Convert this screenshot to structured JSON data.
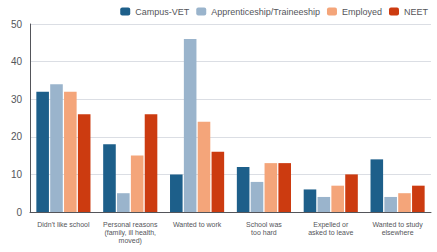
{
  "chart_data": {
    "type": "bar",
    "categories": [
      "Didn't like school",
      "Personal reasons\n(family, ill health,\nmoved)",
      "Wanted to work",
      "School was\ntoo hard",
      "Expelled or\nasked to leave",
      "Wanted to study\nelsewhere"
    ],
    "series": [
      {
        "name": "Campus-VET",
        "color": "#1d5f8a",
        "values": [
          32,
          18,
          10,
          12,
          6,
          14
        ]
      },
      {
        "name": "Apprenticeship/Traineeship",
        "color": "#9ab4cc",
        "values": [
          34,
          5,
          46,
          8,
          4,
          4
        ]
      },
      {
        "name": "Employed",
        "color": "#f4a57a",
        "values": [
          32,
          15,
          24,
          13,
          7,
          5
        ]
      },
      {
        "name": "NEET",
        "color": "#cc3b10",
        "values": [
          26,
          26,
          16,
          13,
          10,
          7
        ]
      }
    ],
    "ylim": [
      0,
      50
    ],
    "yticks": [
      0,
      10,
      20,
      30,
      40,
      50
    ],
    "grid": true,
    "legend": "upper right"
  }
}
